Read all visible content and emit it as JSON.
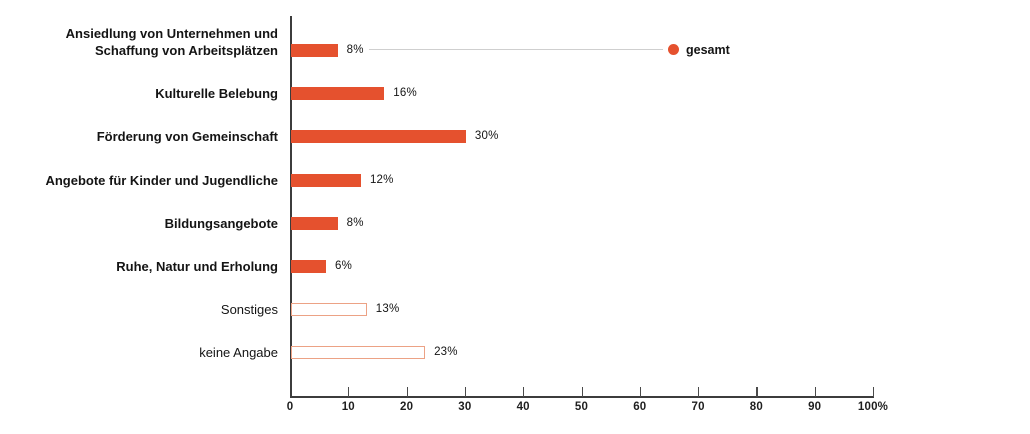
{
  "chart_data": {
    "type": "bar",
    "orientation": "horizontal",
    "title": "",
    "bars": [
      {
        "category": "Ansiedlung von Unternehmen und Schaffung von Arbeitsplätzen",
        "value": 8,
        "value_label": "8%",
        "style": "solid",
        "emphasis": true
      },
      {
        "category": "Kulturelle Belebung",
        "value": 16,
        "value_label": "16%",
        "style": "solid",
        "emphasis": true
      },
      {
        "category": "Förderung von Gemeinschaft",
        "value": 30,
        "value_label": "30%",
        "style": "solid",
        "emphasis": true
      },
      {
        "category": "Angebote für Kinder und Jugendliche",
        "value": 12,
        "value_label": "12%",
        "style": "solid",
        "emphasis": true
      },
      {
        "category": "Bildungsangebote",
        "value": 8,
        "value_label": "8%",
        "style": "solid",
        "emphasis": true
      },
      {
        "category": "Ruhe, Natur und Erholung",
        "value": 6,
        "value_label": "6%",
        "style": "solid",
        "emphasis": true
      },
      {
        "category": "Sonstiges",
        "value": 13,
        "value_label": "13%",
        "style": "outline",
        "emphasis": false
      },
      {
        "category": "keine Angabe",
        "value": 23,
        "value_label": "23%",
        "style": "outline",
        "emphasis": false
      }
    ],
    "xlim": [
      0,
      100
    ],
    "x_ticks": [
      {
        "value": 0,
        "label": "0"
      },
      {
        "value": 10,
        "label": "10"
      },
      {
        "value": 20,
        "label": "20"
      },
      {
        "value": 30,
        "label": "30"
      },
      {
        "value": 40,
        "label": "40"
      },
      {
        "value": 50,
        "label": "50"
      },
      {
        "value": 60,
        "label": "60"
      },
      {
        "value": 70,
        "label": "70"
      },
      {
        "value": 80,
        "label": "80"
      },
      {
        "value": 90,
        "label": "90"
      },
      {
        "value": 100,
        "label": "100%"
      }
    ],
    "legend": {
      "label": "gesamt",
      "marker": "dot",
      "attached_to_category": "Ansiedlung von Unternehmen und Schaffung von Arbeitsplätzen"
    },
    "grid": "off",
    "colors": {
      "bar_fill": "#e5512e",
      "bar_outline_stroke": "#eca285",
      "legend_dot": "#e5512e",
      "axis": "#3c3c3c",
      "leader_line": "#cfcfcf",
      "text": "#141414"
    }
  }
}
